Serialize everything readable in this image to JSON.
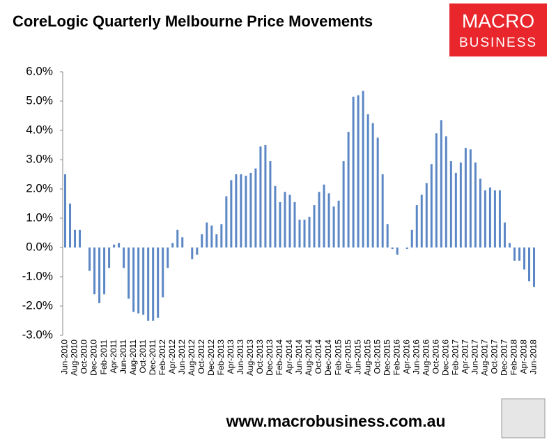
{
  "chart_data": {
    "type": "bar",
    "title": "CoreLogic Quarterly Melbourne Price Movements",
    "color": "#5b87c5",
    "categories": [
      "Jun-2010",
      null,
      "Aug-2010",
      null,
      "Oct-2010",
      null,
      "Dec-2010",
      null,
      "Feb-2011",
      null,
      "Apr-2011",
      null,
      "Jun-2011",
      null,
      "Aug-2011",
      null,
      "Oct-2011",
      null,
      "Dec-2011",
      null,
      "Feb-2012",
      null,
      "Apr-2012",
      null,
      "Jun-2012",
      null,
      "Aug-2012",
      null,
      "Oct-2012",
      null,
      "Dec-2012",
      null,
      "Feb-2013",
      null,
      "Apr-2013",
      null,
      "Jun-2013",
      null,
      "Aug-2013",
      null,
      "Oct-2013",
      null,
      "Dec-2013",
      null,
      "Feb-2014",
      null,
      "Apr-2014",
      null,
      "Jun-2014",
      null,
      "Aug-2014",
      null,
      "Oct-2014",
      null,
      "Dec-2014",
      null,
      "Feb-2015",
      null,
      "Apr-2015",
      null,
      "Jun-2015",
      null,
      "Aug-2015",
      null,
      "Oct-2015",
      null,
      "Dec-2015",
      null,
      "Feb-2016",
      null,
      "Apr-2016",
      null,
      "Jun-2016",
      null,
      "Aug-2016",
      null,
      "Oct-2016",
      null,
      "Dec-2016",
      null,
      "Feb-2017",
      null,
      "Apr-2017",
      null,
      "Jun-2017",
      null,
      "Aug-2017",
      null,
      "Oct-2017",
      null,
      "Dec-2017",
      null,
      "Feb-2018",
      null,
      "Apr-2018",
      null,
      "Jun-2018"
    ],
    "values": [
      2.5,
      1.5,
      0.6,
      0.6,
      0,
      -0.8,
      -1.6,
      -1.9,
      -1.6,
      -0.7,
      0.1,
      0.15,
      -0.7,
      -1.75,
      -2.2,
      -2.25,
      -2.3,
      -2.5,
      -2.5,
      -2.4,
      -1.7,
      -0.7,
      0.15,
      0.6,
      0.35,
      0,
      -0.4,
      -0.25,
      0.45,
      0.85,
      0.75,
      0.45,
      0.8,
      1.75,
      2.3,
      2.5,
      2.5,
      2.45,
      2.55,
      2.7,
      3.45,
      3.5,
      2.95,
      2.1,
      1.55,
      1.9,
      1.8,
      1.55,
      0.95,
      0.95,
      1.05,
      1.45,
      1.9,
      2.15,
      1.85,
      1.4,
      1.6,
      2.95,
      3.95,
      5.15,
      5.2,
      5.35,
      4.55,
      4.25,
      3.75,
      2.5,
      0.8,
      -0.05,
      -0.25,
      0,
      -0.05,
      0.6,
      1.45,
      1.8,
      2.2,
      2.85,
      3.9,
      4.35,
      3.8,
      2.95,
      2.55,
      2.9,
      3.4,
      3.35,
      2.9,
      2.35,
      1.95,
      2.05,
      1.95,
      1.95,
      0.85,
      0.15,
      -0.45,
      -0.45,
      -0.75,
      -1.15,
      -1.35
    ],
    "ylim": [
      -3,
      6
    ],
    "yticks": [
      {
        "value": -3,
        "label": "-3.0%"
      },
      {
        "value": -2,
        "label": "-2.0%"
      },
      {
        "value": -1,
        "label": "-1.0%"
      },
      {
        "value": 0,
        "label": "0.0%"
      },
      {
        "value": 1,
        "label": "1.0%"
      },
      {
        "value": 2,
        "label": "2.0%"
      },
      {
        "value": 3,
        "label": "3.0%"
      },
      {
        "value": 4,
        "label": "4.0%"
      },
      {
        "value": 5,
        "label": "5.0%"
      },
      {
        "value": 6,
        "label": "6.0%"
      }
    ],
    "grid": false
  },
  "branding": {
    "logo_line1": "MACRO",
    "logo_line2": "BUSINESS",
    "website": "www.macrobusiness.com.au"
  }
}
